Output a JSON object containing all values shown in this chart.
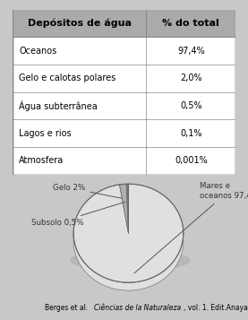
{
  "table_headers": [
    "Depósitos de água",
    "% do total"
  ],
  "table_rows": [
    [
      "Oceanos",
      "97,4%"
    ],
    [
      "Gelo e calotas polares",
      "2,0%"
    ],
    [
      "Água subterrânea",
      "0,5%"
    ],
    [
      "Lagos e rios",
      "0,1%"
    ],
    [
      "Atmosfera",
      "0,001%"
    ]
  ],
  "pie_values": [
    97.4,
    2.0,
    0.5,
    0.1,
    0.001
  ],
  "pie_colors": [
    "#e0e0e0",
    "#b0b0b0",
    "#888888",
    "#555555",
    "#333333"
  ],
  "pie_edge_color": "#666666",
  "header_bg": "#aaaaaa",
  "header_text_color": "#000000",
  "outer_bg": "#c8c8c8",
  "border_color": "#888888",
  "font_size_table": 7.0,
  "font_size_header": 8.0,
  "font_size_pie_label": 6.2,
  "col_split": 0.6
}
